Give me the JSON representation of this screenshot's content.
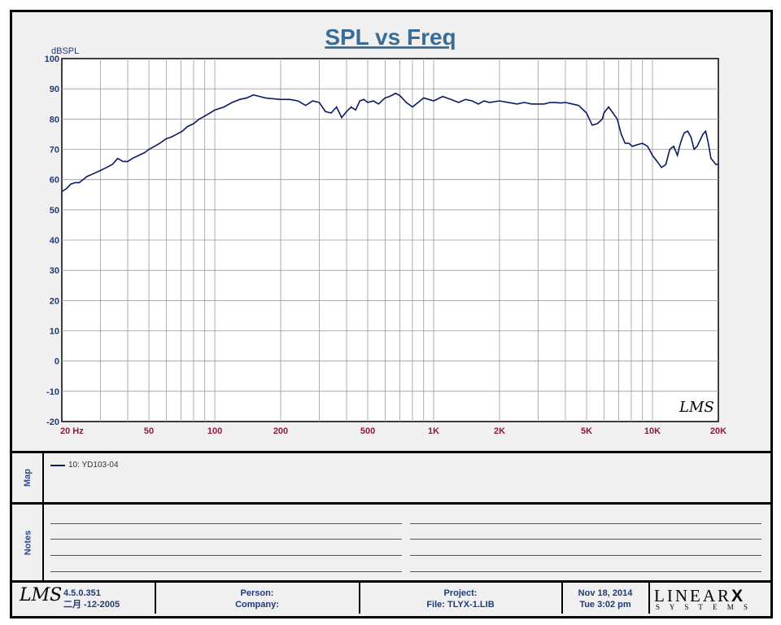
{
  "chart_data": {
    "type": "line",
    "title": "SPL vs Freq",
    "ylabel": "dBSPL",
    "xlabel": "",
    "xscale": "log",
    "xlim": [
      20,
      20000
    ],
    "ylim": [
      -20,
      100
    ],
    "grid": true,
    "xticks": [
      {
        "value": 20,
        "label": "20  Hz"
      },
      {
        "value": 50,
        "label": "50"
      },
      {
        "value": 100,
        "label": "100"
      },
      {
        "value": 200,
        "label": "200"
      },
      {
        "value": 500,
        "label": "500"
      },
      {
        "value": 1000,
        "label": "1K"
      },
      {
        "value": 2000,
        "label": "2K"
      },
      {
        "value": 5000,
        "label": "5K"
      },
      {
        "value": 10000,
        "label": "10K"
      },
      {
        "value": 20000,
        "label": "20K"
      }
    ],
    "yticks": [
      100,
      90,
      80,
      70,
      60,
      50,
      40,
      30,
      20,
      10,
      0,
      -10,
      -20
    ],
    "series": [
      {
        "name": "10: YD103-04",
        "color": "#0b1a66",
        "x": [
          20,
          21,
          22,
          23,
          24,
          25,
          26,
          28,
          30,
          32,
          34,
          36,
          38,
          40,
          42,
          45,
          48,
          50,
          53,
          56,
          60,
          63,
          67,
          71,
          75,
          80,
          85,
          90,
          95,
          100,
          110,
          120,
          130,
          140,
          150,
          160,
          170,
          180,
          200,
          220,
          240,
          260,
          280,
          300,
          320,
          340,
          360,
          380,
          400,
          420,
          440,
          460,
          480,
          500,
          530,
          560,
          600,
          630,
          670,
          700,
          750,
          800,
          850,
          900,
          950,
          1000,
          1100,
          1200,
          1300,
          1400,
          1500,
          1600,
          1700,
          1800,
          2000,
          2200,
          2400,
          2600,
          2800,
          3000,
          3200,
          3400,
          3600,
          3800,
          4000,
          4300,
          4600,
          5000,
          5300,
          5600,
          5900,
          6000,
          6300,
          6600,
          6900,
          7200,
          7500,
          7800,
          8100,
          8500,
          9000,
          9500,
          10000,
          10500,
          11000,
          11500,
          12000,
          12500,
          13000,
          13300,
          13700,
          14000,
          14500,
          15000,
          15500,
          16000,
          16500,
          17000,
          17500,
          18000,
          18500,
          19000,
          19500,
          20000
        ],
        "y": [
          56,
          57,
          58.5,
          59,
          59,
          60,
          61,
          62,
          63,
          64,
          65,
          67,
          66,
          66,
          67,
          68,
          69,
          70,
          71,
          72,
          73.5,
          74,
          75,
          76,
          77.5,
          78.5,
          80,
          81,
          82,
          83,
          84,
          85.5,
          86.5,
          87,
          88,
          87.5,
          87,
          86.8,
          86.5,
          86.5,
          86,
          84.5,
          86,
          85.5,
          82.5,
          82,
          84,
          80.5,
          82.5,
          84,
          83,
          86,
          86.5,
          85.5,
          86,
          85,
          87,
          87.5,
          88.5,
          87.8,
          85.5,
          84,
          85.5,
          87,
          86.5,
          86,
          87.5,
          86.5,
          85.5,
          86.5,
          86,
          85,
          86,
          85.5,
          86,
          85.5,
          85,
          85.5,
          85,
          85,
          85,
          85.5,
          85.5,
          85.3,
          85.5,
          85,
          84.5,
          82,
          78,
          78.5,
          80,
          82,
          84,
          82,
          80,
          75,
          72,
          72,
          71,
          71.5,
          72,
          71,
          68,
          66,
          64,
          65,
          70,
          71,
          68,
          71,
          74,
          75.5,
          76,
          74,
          70,
          71,
          73,
          75,
          76,
          72,
          67,
          66,
          65,
          65
        ]
      }
    ]
  },
  "map_label": "Map",
  "notes_label": "Notes",
  "footer": {
    "version": "4.5.0.351",
    "version_date": "二月 -12-2005",
    "person_label": "Person:",
    "company_label": "Company:",
    "project_label": "Project:",
    "file_label": "File: TLYX-1.LIB",
    "date": "Nov 18, 2014",
    "time": "Tue  3:02 pm",
    "logo_text": "LMS",
    "brand_top": "LINEAR",
    "brand_x": "X",
    "brand_bottom": "S Y S T E M S"
  },
  "colors": {
    "title": "#3a6d96",
    "axis_label": "#1f3a78",
    "x_tick": "#8b1a3a",
    "trace": "#0b1a66",
    "grid": "#9a9a9a"
  }
}
